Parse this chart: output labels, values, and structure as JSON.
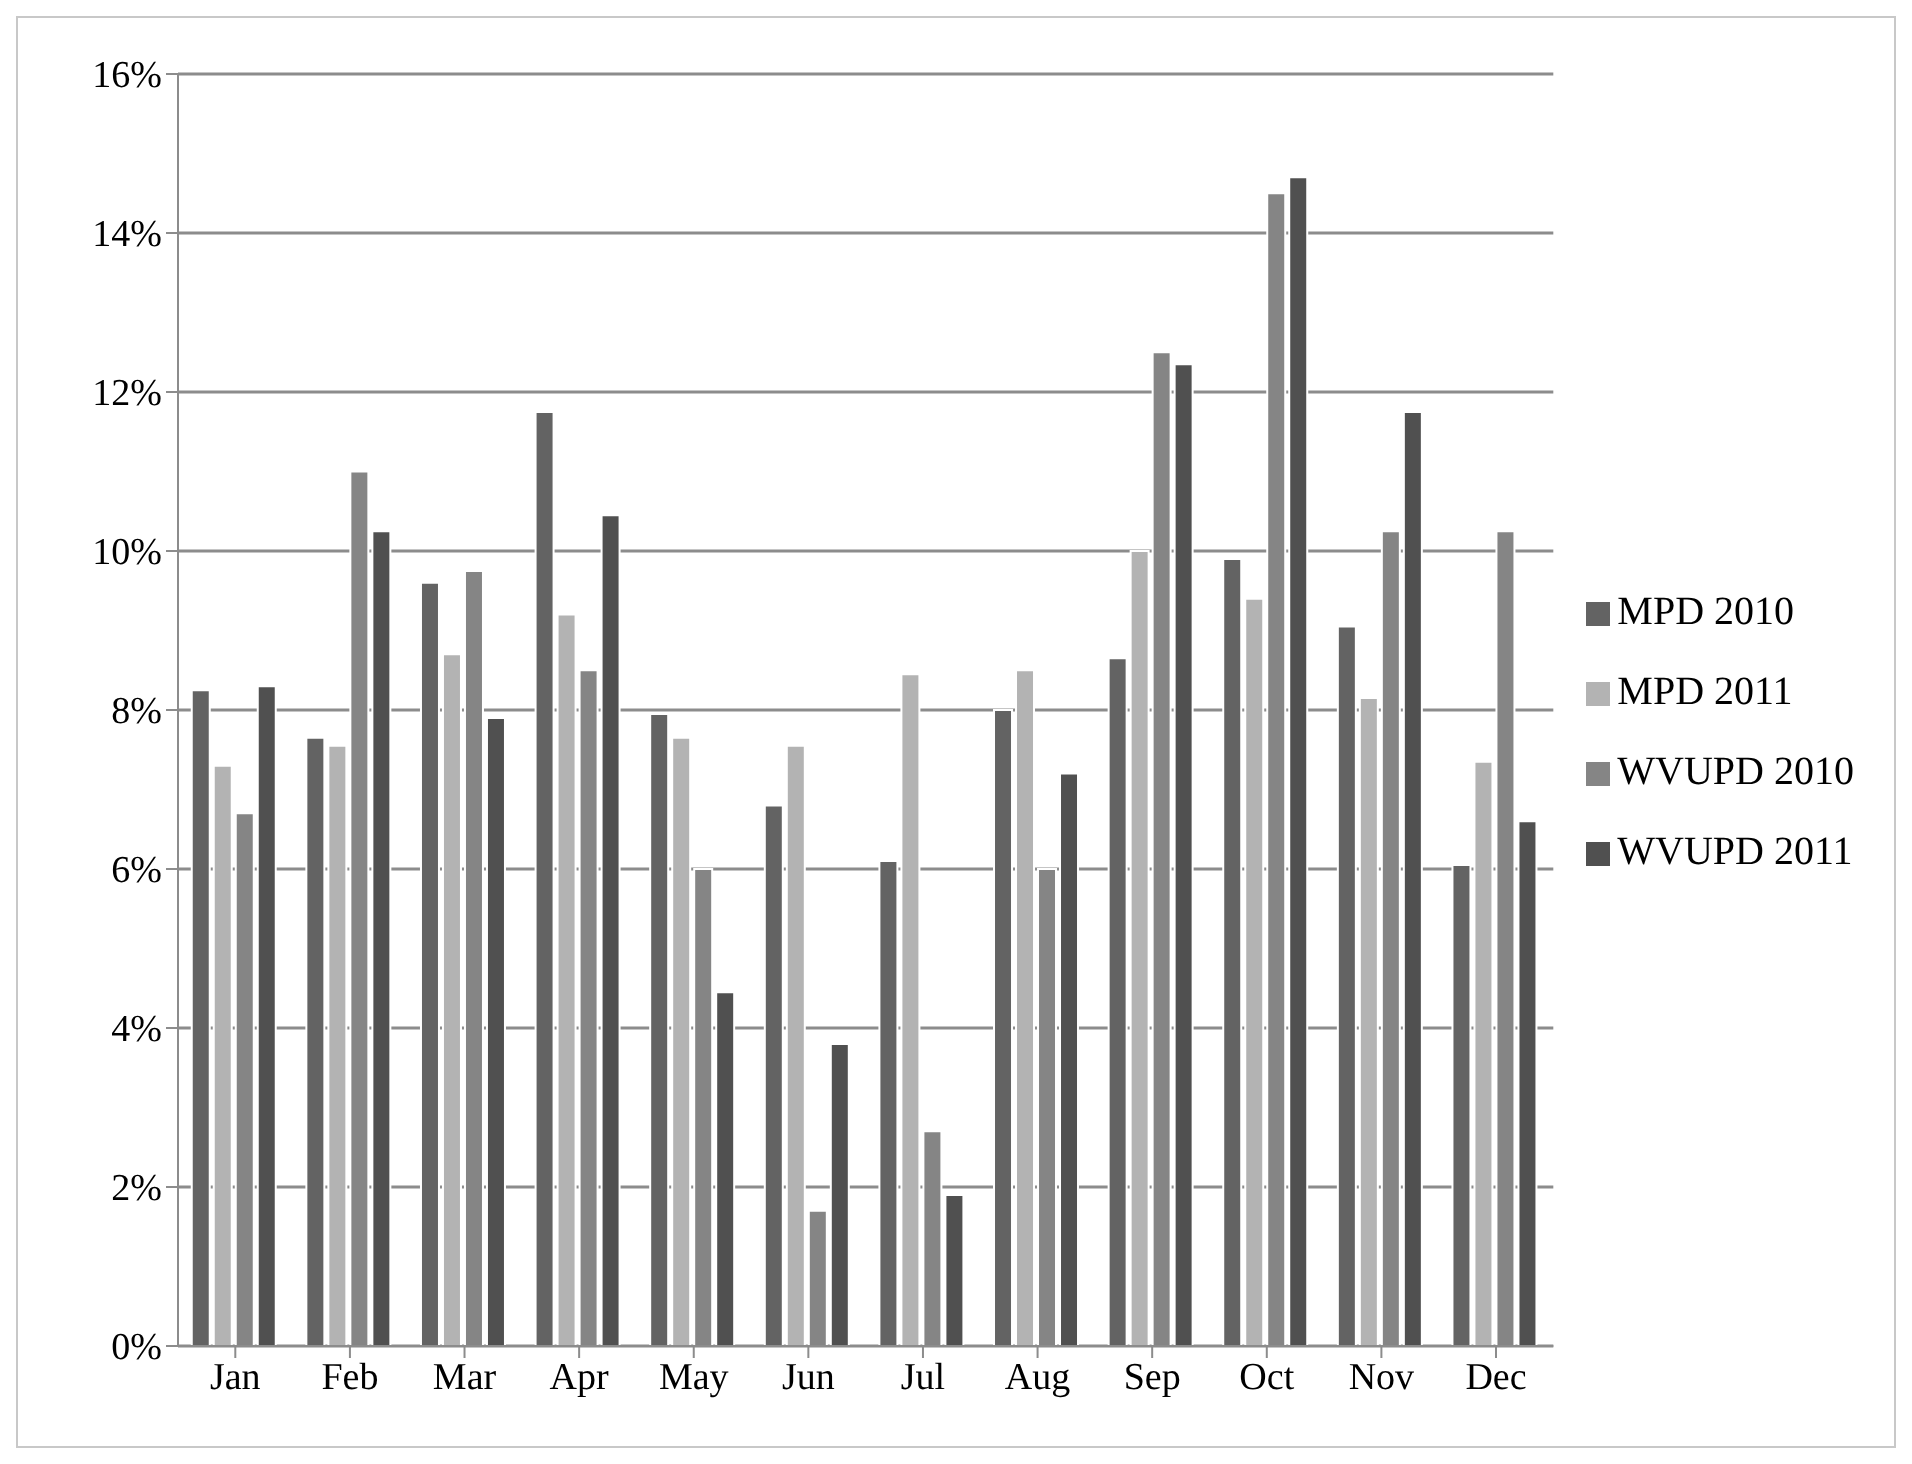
{
  "chart_data": {
    "type": "bar",
    "categories": [
      "Jan",
      "Feb",
      "Mar",
      "Apr",
      "May",
      "Jun",
      "Jul",
      "Aug",
      "Sep",
      "Oct",
      "Nov",
      "Dec"
    ],
    "series": [
      {
        "name": "MPD 2010",
        "color": "#636363",
        "values": [
          8.25,
          7.65,
          9.6,
          11.75,
          7.95,
          6.8,
          6.1,
          8.0,
          8.65,
          9.9,
          9.05,
          6.05
        ]
      },
      {
        "name": "MPD 2011",
        "color": "#b3b3b3",
        "values": [
          7.3,
          7.55,
          8.7,
          9.2,
          7.65,
          7.55,
          8.45,
          8.5,
          10.0,
          9.4,
          8.15,
          7.35
        ]
      },
      {
        "name": "WVUPD 2010",
        "color": "#858585",
        "values": [
          6.7,
          11.0,
          9.75,
          8.5,
          6.0,
          1.7,
          2.7,
          6.0,
          12.5,
          14.5,
          10.25,
          10.25
        ]
      },
      {
        "name": "WVUPD 2011",
        "color": "#505050",
        "values": [
          8.3,
          10.25,
          7.9,
          10.45,
          4.45,
          3.8,
          1.9,
          7.2,
          12.35,
          14.7,
          11.75,
          6.6
        ]
      }
    ],
    "ylim": [
      0,
      16
    ],
    "yticks": [
      {
        "value": 0,
        "label": "0%"
      },
      {
        "value": 2,
        "label": "2%"
      },
      {
        "value": 4,
        "label": "4%"
      },
      {
        "value": 6,
        "label": "6%"
      },
      {
        "value": 8,
        "label": "8%"
      },
      {
        "value": 10,
        "label": "10%"
      },
      {
        "value": 12,
        "label": "12%"
      },
      {
        "value": 14,
        "label": "14%"
      },
      {
        "value": 16,
        "label": "16%"
      }
    ],
    "grid": "y",
    "legend": "right"
  }
}
